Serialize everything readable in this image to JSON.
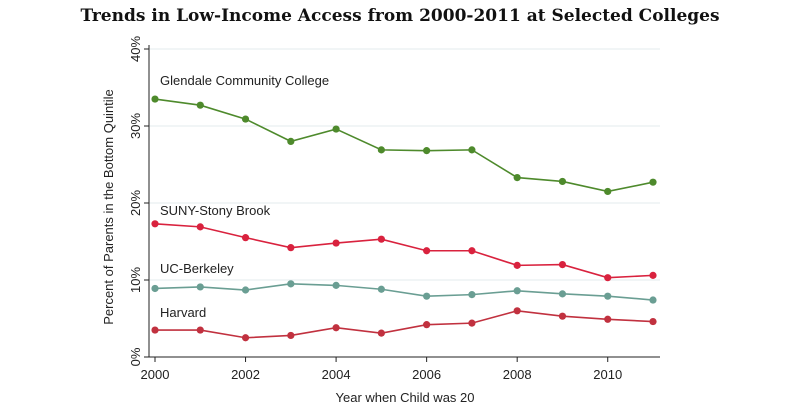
{
  "chart_data": {
    "type": "line",
    "title": "Trends in Low-Income Access from 2000-2011 at Selected Colleges",
    "xlabel": "Year when Child was 20",
    "ylabel": "Percent of Parents in the Bottom Quintile",
    "x": [
      2000,
      2001,
      2002,
      2003,
      2004,
      2005,
      2006,
      2007,
      2008,
      2009,
      2010,
      2011
    ],
    "xticks": [
      2000,
      2002,
      2004,
      2006,
      2008,
      2010
    ],
    "xtick_labels": [
      "2000",
      "2002",
      "2004",
      "2006",
      "2008",
      "2010"
    ],
    "xlim": [
      2000,
      2011
    ],
    "yticks": [
      0,
      10,
      20,
      30,
      40
    ],
    "ytick_labels": [
      "0%",
      "10%",
      "20%",
      "30%",
      "40%"
    ],
    "ylim": [
      0,
      40
    ],
    "grid": true,
    "series": [
      {
        "name": "Glendale Community College",
        "color": "#4e8a2c",
        "values": [
          33.5,
          32.7,
          30.9,
          28.0,
          29.6,
          26.9,
          26.8,
          26.9,
          23.3,
          22.8,
          21.5,
          22.7
        ]
      },
      {
        "name": "SUNY-Stony Brook",
        "color": "#d9223e",
        "values": [
          17.3,
          16.9,
          15.5,
          14.2,
          14.8,
          15.3,
          13.8,
          13.8,
          11.9,
          12.0,
          10.3,
          10.6
        ]
      },
      {
        "name": "UC-Berkeley",
        "color": "#6a9e93",
        "values": [
          8.9,
          9.1,
          8.7,
          9.5,
          9.3,
          8.8,
          7.9,
          8.1,
          8.6,
          8.2,
          7.9,
          7.4
        ]
      },
      {
        "name": "Harvard",
        "color": "#c1313f",
        "values": [
          3.5,
          3.5,
          2.5,
          2.8,
          3.8,
          3.1,
          4.2,
          4.4,
          6.0,
          5.3,
          4.9,
          4.6
        ]
      }
    ]
  }
}
